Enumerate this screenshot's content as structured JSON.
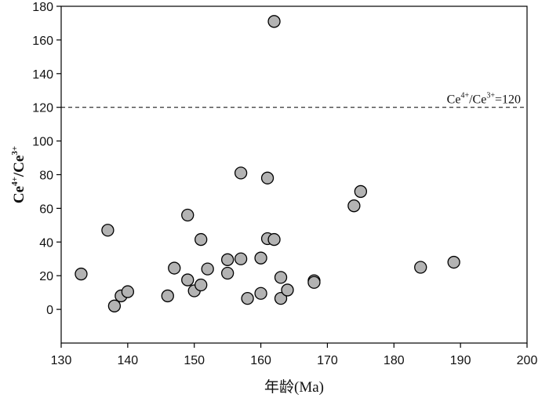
{
  "chart_data": {
    "type": "scatter",
    "title": "",
    "xlabel": "年龄(Ma)",
    "ylabel": {
      "base1": "Ce",
      "sup1": "4+",
      "sep": "/",
      "base2": "Ce",
      "sup2": "3+"
    },
    "xlim": [
      130,
      200
    ],
    "ylim": [
      -20,
      180
    ],
    "xticks": [
      130,
      140,
      150,
      160,
      170,
      180,
      190,
      200
    ],
    "yticks": [
      0,
      20,
      40,
      60,
      80,
      100,
      120,
      140,
      160,
      180
    ],
    "grid": false,
    "reference_line": {
      "y": 120,
      "style": "dashed",
      "label": {
        "base1": "Ce",
        "sup1": "4+",
        "sep": "/",
        "base2": "Ce",
        "sup2": "3+",
        "suffix": "=120"
      }
    },
    "marker_fill": "#b3b3b3",
    "marker_stroke": "#000000",
    "points": [
      {
        "x": 133,
        "y": 21
      },
      {
        "x": 137,
        "y": 47
      },
      {
        "x": 138,
        "y": 2
      },
      {
        "x": 139,
        "y": 8
      },
      {
        "x": 140,
        "y": 10.5
      },
      {
        "x": 146,
        "y": 8
      },
      {
        "x": 147,
        "y": 24.5
      },
      {
        "x": 149,
        "y": 56
      },
      {
        "x": 149,
        "y": 17.5
      },
      {
        "x": 150,
        "y": 11
      },
      {
        "x": 151,
        "y": 41.5
      },
      {
        "x": 151,
        "y": 14.5
      },
      {
        "x": 152,
        "y": 24
      },
      {
        "x": 155,
        "y": 29.5
      },
      {
        "x": 155,
        "y": 21.5
      },
      {
        "x": 157,
        "y": 81
      },
      {
        "x": 157,
        "y": 30
      },
      {
        "x": 158,
        "y": 6.5
      },
      {
        "x": 160,
        "y": 30.5
      },
      {
        "x": 160,
        "y": 9.5
      },
      {
        "x": 161,
        "y": 78
      },
      {
        "x": 161,
        "y": 42
      },
      {
        "x": 162,
        "y": 41.5
      },
      {
        "x": 162,
        "y": 171
      },
      {
        "x": 163,
        "y": 19
      },
      {
        "x": 163,
        "y": 6.5
      },
      {
        "x": 164,
        "y": 11.5
      },
      {
        "x": 168,
        "y": 17
      },
      {
        "x": 168,
        "y": 16
      },
      {
        "x": 174,
        "y": 61.5
      },
      {
        "x": 175,
        "y": 70
      },
      {
        "x": 184,
        "y": 25
      },
      {
        "x": 189,
        "y": 28
      }
    ]
  }
}
